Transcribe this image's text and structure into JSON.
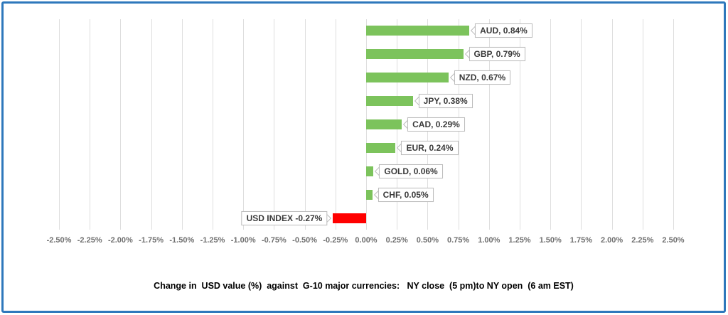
{
  "chart_data": {
    "type": "bar",
    "orientation": "horizontal",
    "categories": [
      "AUD",
      "GBP",
      "NZD",
      "JPY",
      "CAD",
      "EUR",
      "GOLD",
      "CHF",
      "USD INDEX"
    ],
    "values": [
      0.84,
      0.79,
      0.67,
      0.38,
      0.29,
      0.24,
      0.06,
      0.05,
      -0.27
    ],
    "bar_labels": [
      "AUD, 0.84%",
      "GBP, 0.79%",
      "NZD, 0.67%",
      "JPY, 0.38%",
      "CAD, 0.29%",
      "EUR, 0.24%",
      "GOLD, 0.06%",
      "CHF, 0.05%",
      "USD INDEX -0.27%"
    ],
    "xlim": [
      -2.5,
      2.5
    ],
    "tick_step": 0.25,
    "tick_labels": [
      "-2.50%",
      "-2.25%",
      "-2.00%",
      "-1.75%",
      "-1.50%",
      "-1.25%",
      "-1.00%",
      "-0.75%",
      "-0.50%",
      "-0.25%",
      "0.00%",
      "0.25%",
      "0.50%",
      "0.75%",
      "1.00%",
      "1.25%",
      "1.50%",
      "1.75%",
      "2.00%",
      "2.25%",
      "2.50%"
    ],
    "grid": true,
    "legend": "none",
    "title": "Change in  USD value (%)  against  G-10 major currencies:   NY close  (5 pm)to NY open  (6 am EST)",
    "colors": {
      "positive_bar": "#7CC35C",
      "negative_bar": "#FF0000",
      "gridline": "#DEDEDE",
      "frame_border": "#2E78BC",
      "tick_text": "#6F6F6F",
      "label_text": "#3A3A3A",
      "callout_border": "#BDBDBD"
    }
  }
}
